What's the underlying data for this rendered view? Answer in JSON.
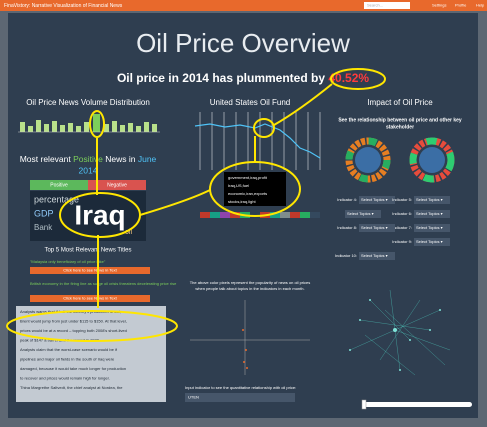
{
  "header": {
    "brand": "FinaVistory: Narrative Visualization of Financial News",
    "search": "Search...",
    "links": [
      "Settings",
      "Profile",
      "Help"
    ]
  },
  "title": "Oil Price Overview",
  "subtitle": {
    "text": "Oil price in 2014 has plummented by ",
    "highlight": "40.52%"
  },
  "left": {
    "title": "Oil Price News Volume Distribution",
    "news_heading": [
      "Most relevant ",
      "Positive",
      " News in ",
      "June",
      " 2014"
    ],
    "buttons": [
      "Positive",
      "Negative"
    ],
    "cloud": [
      "Iraq",
      "percentage",
      "GDP",
      "Bank",
      "oil"
    ],
    "top_titles": "Top 5 Most Relevant News Titles",
    "news": [
      "\"Malaysia only beneficiary of oil price hike\"",
      "British economy in the firing line as surge oil crisis threatens decelerating price rise"
    ],
    "news_button": "Click here to see News in Text",
    "article": [
      "Analysts warns that if half the country's production is lost,",
      "Brent would jump from just under $115 to $150. At that level,",
      "prices would be at a record – topping both 2008's short-lived",
      "peak of $147 a barrel and the record in 1979.",
      "Analysts claim that the worst-case scenario would be if",
      "pipelines and major oil fields in the south of Iraq were",
      "damaged, because it would take much longer for production",
      "to recover and prices would remain high for longer.",
      "Thina Margrethe Saltvedt, the chief analyst at Nordea, the"
    ]
  },
  "middle": {
    "title": "United States Oil Fund",
    "tooltip": [
      "government,iraq,profit",
      "Iraq,US,fuel",
      "economic,iran,exports",
      "stocks,iraq,light"
    ],
    "note": [
      "The above color pixels represent the popularity of news on oil prices",
      "when people talk about topics in the indicators in each month."
    ],
    "input_label": "Input indicator to see the quantitative relationship with oil price:",
    "input_value": "UTEN"
  },
  "right": {
    "title": "Impact of Oil Price",
    "subtitle": [
      "See the relationship between oil price and other key",
      "stakeholder"
    ],
    "indicators": [
      "Indicator 4:",
      "Indicator 5:",
      "Indicator 6:",
      "Indicator 7:",
      "Indicator 8:",
      "Indicator 9:",
      "Indicator 10:"
    ],
    "select": "Select Topics ▾"
  }
}
